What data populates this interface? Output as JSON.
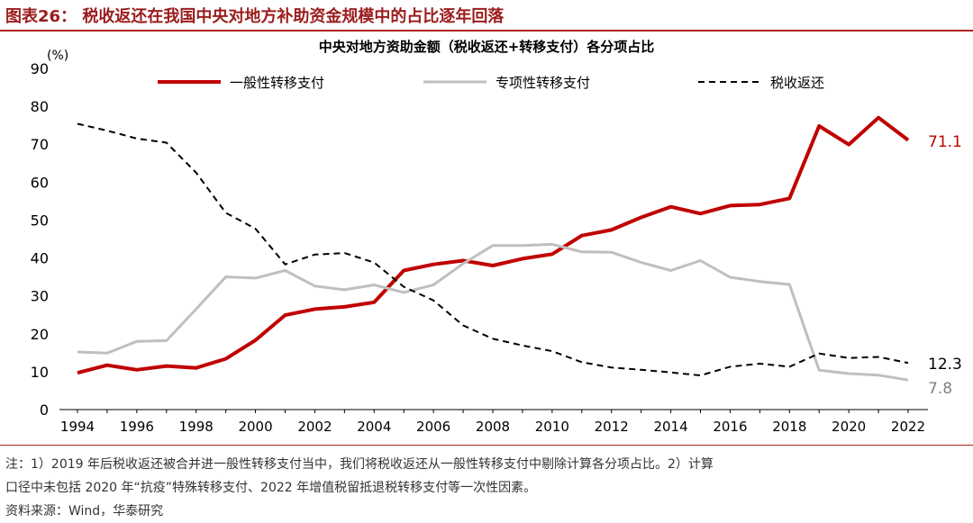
{
  "figure": {
    "title": "图表26：  税收返还在我国中央对地方补助资金规模中的占比逐年回落",
    "notes": [
      "注：1）2019 年后税收返还被合并进一般性转移支付当中，我们将税收返还从一般性转移支付中剔除计算各分项占比。2）计算",
      "口径中未包括 2020 年“抗疫”特殊转移支付、2022 年增值税留抵退税转移支付等一次性因素。",
      "资料来源：Wind，华泰研究"
    ]
  },
  "chart_data": {
    "type": "line",
    "title": "中央对地方资助金额（税收返还+转移支付）各分项占比",
    "ylabel": "(%)",
    "xlabel": "",
    "ylim": [
      0,
      90
    ],
    "yticks": [
      0,
      10,
      20,
      30,
      40,
      50,
      60,
      70,
      80,
      90
    ],
    "xlim": [
      1994,
      2022
    ],
    "xticks": [
      1994,
      1996,
      1998,
      2000,
      2002,
      2004,
      2006,
      2008,
      2010,
      2012,
      2014,
      2016,
      2018,
      2020,
      2022
    ],
    "grid": false,
    "legend": "top",
    "x": [
      1994,
      1995,
      1996,
      1997,
      1998,
      1999,
      2000,
      2001,
      2002,
      2003,
      2004,
      2005,
      2006,
      2007,
      2008,
      2009,
      2010,
      2011,
      2012,
      2013,
      2014,
      2015,
      2016,
      2017,
      2018,
      2019,
      2020,
      2021,
      2022
    ],
    "series": [
      {
        "name": "一般性转移支付",
        "color": "#c00000",
        "style": "solid-thick",
        "values": [
          9.7,
          11.7,
          10.5,
          11.5,
          11.0,
          13.4,
          18.3,
          24.9,
          26.5,
          27.1,
          28.3,
          36.7,
          38.3,
          39.3,
          38.0,
          39.8,
          41.0,
          45.9,
          47.4,
          50.7,
          53.5,
          51.7,
          53.8,
          54.1,
          55.7,
          74.8,
          69.9,
          77.0,
          71.1
        ],
        "end_label": "71.1"
      },
      {
        "name": "专项性转移支付",
        "color": "#bfbfbf",
        "style": "solid",
        "values": [
          15.2,
          14.9,
          18.0,
          18.2,
          26.5,
          35.0,
          34.7,
          36.7,
          32.6,
          31.6,
          32.9,
          30.9,
          32.9,
          38.5,
          43.3,
          43.3,
          43.6,
          41.6,
          41.5,
          38.8,
          36.7,
          39.3,
          34.9,
          33.8,
          33.0,
          10.4,
          9.5,
          9.1,
          7.8
        ],
        "end_label": "7.8"
      },
      {
        "name": "税收返还",
        "color": "#000000",
        "style": "dashed",
        "values": [
          75.4,
          73.6,
          71.5,
          70.4,
          62.5,
          51.9,
          47.7,
          38.3,
          40.9,
          41.3,
          38.8,
          32.4,
          28.8,
          22.2,
          18.7,
          16.9,
          15.4,
          12.5,
          11.1,
          10.5,
          9.8,
          9.0,
          11.3,
          12.1,
          11.3,
          14.8,
          13.6,
          13.9,
          12.3
        ],
        "end_label": "12.3"
      }
    ]
  }
}
